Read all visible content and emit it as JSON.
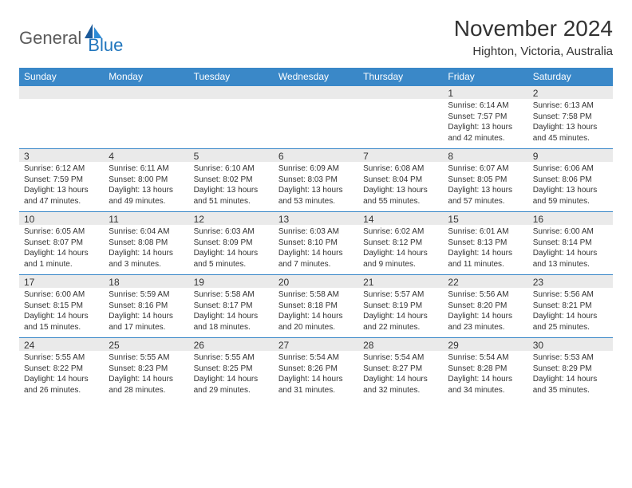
{
  "logo": {
    "general": "General",
    "blue": "Blue"
  },
  "title": "November 2024",
  "location": "Highton, Victoria, Australia",
  "colors": {
    "header_bg": "#3a88c8",
    "header_text": "#ffffff",
    "date_bg": "#eaeaea",
    "row_border": "#3a88c8",
    "text": "#333333",
    "logo_general": "#5a5a5a",
    "logo_blue": "#2176bd"
  },
  "columns": [
    "Sunday",
    "Monday",
    "Tuesday",
    "Wednesday",
    "Thursday",
    "Friday",
    "Saturday"
  ],
  "weeks": [
    {
      "dates": [
        "",
        "",
        "",
        "",
        "",
        "1",
        "2"
      ],
      "info": [
        [],
        [],
        [],
        [],
        [],
        [
          "Sunrise: 6:14 AM",
          "Sunset: 7:57 PM",
          "Daylight: 13 hours",
          "and 42 minutes."
        ],
        [
          "Sunrise: 6:13 AM",
          "Sunset: 7:58 PM",
          "Daylight: 13 hours",
          "and 45 minutes."
        ]
      ]
    },
    {
      "dates": [
        "3",
        "4",
        "5",
        "6",
        "7",
        "8",
        "9"
      ],
      "info": [
        [
          "Sunrise: 6:12 AM",
          "Sunset: 7:59 PM",
          "Daylight: 13 hours",
          "and 47 minutes."
        ],
        [
          "Sunrise: 6:11 AM",
          "Sunset: 8:00 PM",
          "Daylight: 13 hours",
          "and 49 minutes."
        ],
        [
          "Sunrise: 6:10 AM",
          "Sunset: 8:02 PM",
          "Daylight: 13 hours",
          "and 51 minutes."
        ],
        [
          "Sunrise: 6:09 AM",
          "Sunset: 8:03 PM",
          "Daylight: 13 hours",
          "and 53 minutes."
        ],
        [
          "Sunrise: 6:08 AM",
          "Sunset: 8:04 PM",
          "Daylight: 13 hours",
          "and 55 minutes."
        ],
        [
          "Sunrise: 6:07 AM",
          "Sunset: 8:05 PM",
          "Daylight: 13 hours",
          "and 57 minutes."
        ],
        [
          "Sunrise: 6:06 AM",
          "Sunset: 8:06 PM",
          "Daylight: 13 hours",
          "and 59 minutes."
        ]
      ]
    },
    {
      "dates": [
        "10",
        "11",
        "12",
        "13",
        "14",
        "15",
        "16"
      ],
      "info": [
        [
          "Sunrise: 6:05 AM",
          "Sunset: 8:07 PM",
          "Daylight: 14 hours",
          "and 1 minute."
        ],
        [
          "Sunrise: 6:04 AM",
          "Sunset: 8:08 PM",
          "Daylight: 14 hours",
          "and 3 minutes."
        ],
        [
          "Sunrise: 6:03 AM",
          "Sunset: 8:09 PM",
          "Daylight: 14 hours",
          "and 5 minutes."
        ],
        [
          "Sunrise: 6:03 AM",
          "Sunset: 8:10 PM",
          "Daylight: 14 hours",
          "and 7 minutes."
        ],
        [
          "Sunrise: 6:02 AM",
          "Sunset: 8:12 PM",
          "Daylight: 14 hours",
          "and 9 minutes."
        ],
        [
          "Sunrise: 6:01 AM",
          "Sunset: 8:13 PM",
          "Daylight: 14 hours",
          "and 11 minutes."
        ],
        [
          "Sunrise: 6:00 AM",
          "Sunset: 8:14 PM",
          "Daylight: 14 hours",
          "and 13 minutes."
        ]
      ]
    },
    {
      "dates": [
        "17",
        "18",
        "19",
        "20",
        "21",
        "22",
        "23"
      ],
      "info": [
        [
          "Sunrise: 6:00 AM",
          "Sunset: 8:15 PM",
          "Daylight: 14 hours",
          "and 15 minutes."
        ],
        [
          "Sunrise: 5:59 AM",
          "Sunset: 8:16 PM",
          "Daylight: 14 hours",
          "and 17 minutes."
        ],
        [
          "Sunrise: 5:58 AM",
          "Sunset: 8:17 PM",
          "Daylight: 14 hours",
          "and 18 minutes."
        ],
        [
          "Sunrise: 5:58 AM",
          "Sunset: 8:18 PM",
          "Daylight: 14 hours",
          "and 20 minutes."
        ],
        [
          "Sunrise: 5:57 AM",
          "Sunset: 8:19 PM",
          "Daylight: 14 hours",
          "and 22 minutes."
        ],
        [
          "Sunrise: 5:56 AM",
          "Sunset: 8:20 PM",
          "Daylight: 14 hours",
          "and 23 minutes."
        ],
        [
          "Sunrise: 5:56 AM",
          "Sunset: 8:21 PM",
          "Daylight: 14 hours",
          "and 25 minutes."
        ]
      ]
    },
    {
      "dates": [
        "24",
        "25",
        "26",
        "27",
        "28",
        "29",
        "30"
      ],
      "info": [
        [
          "Sunrise: 5:55 AM",
          "Sunset: 8:22 PM",
          "Daylight: 14 hours",
          "and 26 minutes."
        ],
        [
          "Sunrise: 5:55 AM",
          "Sunset: 8:23 PM",
          "Daylight: 14 hours",
          "and 28 minutes."
        ],
        [
          "Sunrise: 5:55 AM",
          "Sunset: 8:25 PM",
          "Daylight: 14 hours",
          "and 29 minutes."
        ],
        [
          "Sunrise: 5:54 AM",
          "Sunset: 8:26 PM",
          "Daylight: 14 hours",
          "and 31 minutes."
        ],
        [
          "Sunrise: 5:54 AM",
          "Sunset: 8:27 PM",
          "Daylight: 14 hours",
          "and 32 minutes."
        ],
        [
          "Sunrise: 5:54 AM",
          "Sunset: 8:28 PM",
          "Daylight: 14 hours",
          "and 34 minutes."
        ],
        [
          "Sunrise: 5:53 AM",
          "Sunset: 8:29 PM",
          "Daylight: 14 hours",
          "and 35 minutes."
        ]
      ]
    }
  ]
}
